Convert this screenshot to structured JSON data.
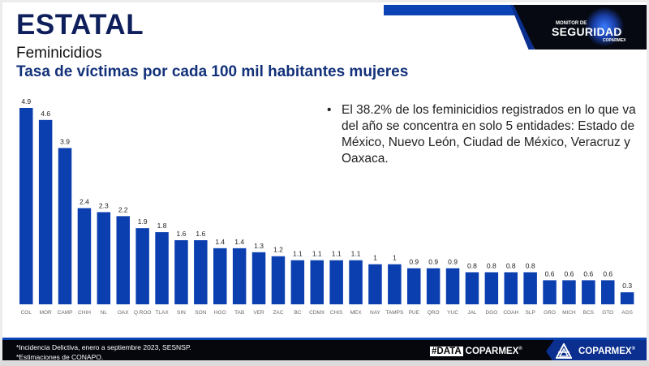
{
  "header": {
    "title": "ESTATAL",
    "subtitle": "Feminicidios",
    "subtitle2": "Tasa de víctimas por cada 100 mil habitantes mujeres"
  },
  "brand": {
    "monitor_small": "MONITOR DE",
    "monitor_big": "SEGURIDAD",
    "monitor_tiny": "COPARMEX",
    "data_box": "#DATA",
    "data_text": "COPARMEX",
    "coparmex": "COPARMEX",
    "registered": "®"
  },
  "bullet": {
    "marker": "•",
    "text": "El 38.2% de los feminicidios registrados en lo que va del año se concentra en solo 5 entidades: Estado de México, Nuevo León, Ciudad de México, Veracruz y Oaxaca."
  },
  "footer": {
    "notes": [
      "*Incidencia Delictiva, enero a septiembre 2023, SESNSP.",
      "*Estimaciones de CONAPO."
    ]
  },
  "colors": {
    "bar": "#0b3fb0",
    "title": "#0e1f5c",
    "accent": "#0b43b4"
  },
  "chart_data": {
    "type": "bar",
    "title": "Tasa de víctimas por cada 100 mil habitantes mujeres",
    "xlabel": "",
    "ylabel": "",
    "ylim": [
      0,
      4.9
    ],
    "grid": false,
    "legend": "none",
    "categories": [
      "COL",
      "MOR",
      "CAMP",
      "CHIH",
      "NL",
      "OAX",
      "Q.ROO",
      "TLAX",
      "SIN",
      "SON",
      "HGO",
      "TAB",
      "VER",
      "ZAC",
      "BC",
      "CDMX",
      "CHIS",
      "MEX",
      "NAY",
      "TAMPS",
      "PUE",
      "QRO",
      "YUC",
      "JAL",
      "DGO",
      "COAH",
      "SLP",
      "GRO",
      "MICH",
      "BCS",
      "GTO",
      "AGS"
    ],
    "values": [
      4.9,
      4.6,
      3.9,
      2.4,
      2.3,
      2.2,
      1.9,
      1.8,
      1.6,
      1.6,
      1.4,
      1.4,
      1.3,
      1.2,
      1.1,
      1.1,
      1.1,
      1.1,
      1,
      1,
      0.9,
      0.9,
      0.9,
      0.8,
      0.8,
      0.8,
      0.8,
      0.6,
      0.6,
      0.6,
      0.6,
      0.3
    ],
    "labels": [
      "4.9",
      "4.6",
      "3.9",
      "2.4",
      "2.3",
      "2.2",
      "1.9",
      "1.8",
      "1.6",
      "1.6",
      "1.4",
      "1.4",
      "1.3",
      "1.2",
      "1.1",
      "1.1",
      "1.1",
      "1.1",
      "1",
      "1",
      "0.9",
      "0.9",
      "0.9",
      "0.8",
      "0.8",
      "0.8",
      "0.8",
      "0.6",
      "0.6",
      "0.6",
      "0.6",
      "0.3"
    ]
  }
}
